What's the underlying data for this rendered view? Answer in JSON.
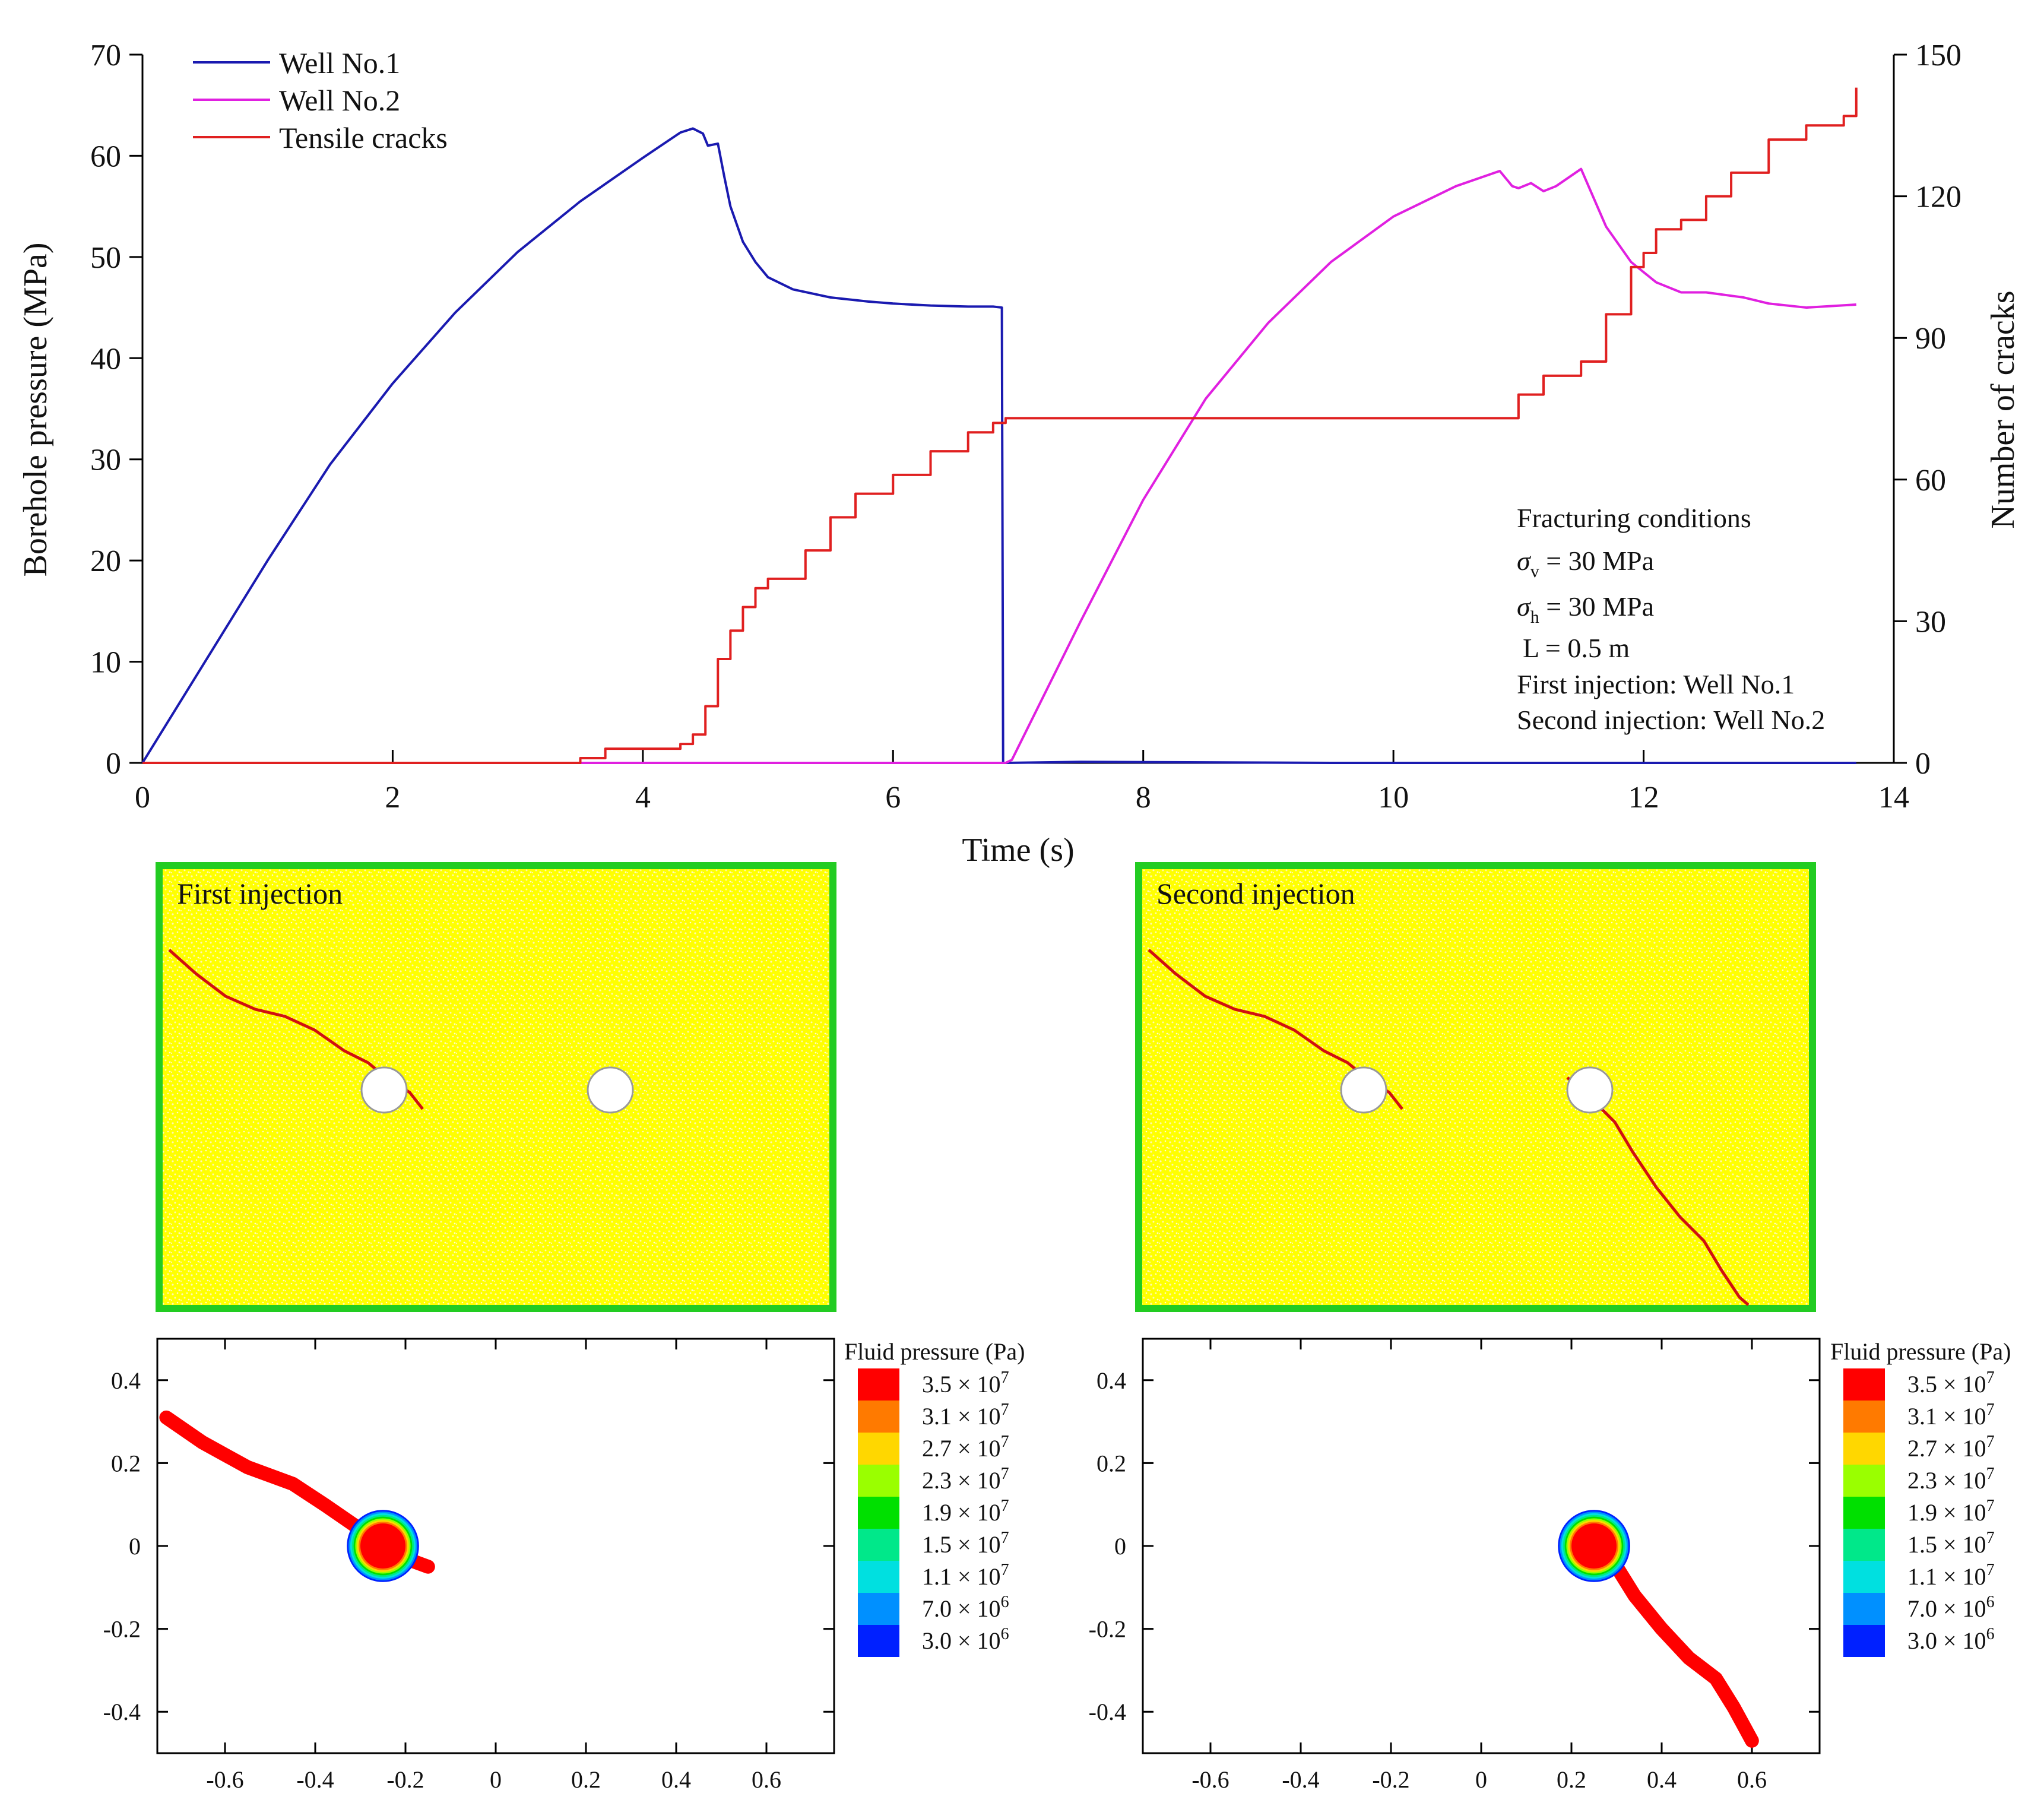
{
  "chart_data": [
    {
      "type": "line",
      "title": "",
      "xlabel": "Time (s)",
      "ylabel": "Borehole pressure (MPa)",
      "y2label": "Number of cracks",
      "xlim": [
        0,
        14
      ],
      "ylim": [
        0,
        70
      ],
      "y2lim": [
        0,
        150
      ],
      "xticks": [
        0,
        2,
        4,
        6,
        8,
        10,
        12,
        14
      ],
      "yticks": [
        0,
        10,
        20,
        30,
        40,
        50,
        60,
        70
      ],
      "y2ticks": [
        0,
        30,
        60,
        90,
        120,
        150
      ],
      "legend_position": "top-left",
      "series": [
        {
          "name": "Well No.1",
          "axis": "left",
          "color": "#1a1ab0",
          "x": [
            0,
            0.5,
            1.0,
            1.5,
            2.0,
            2.5,
            3.0,
            3.5,
            4.0,
            4.3,
            4.4,
            4.48,
            4.52,
            4.6,
            4.65,
            4.7,
            4.8,
            4.9,
            5.0,
            5.2,
            5.5,
            5.8,
            6.0,
            6.3,
            6.6,
            6.8,
            6.87,
            6.88,
            6.9,
            7.5,
            9.5,
            11,
            12,
            13,
            13.7
          ],
          "values": [
            0,
            10,
            20,
            29.5,
            37.5,
            44.5,
            50.5,
            55.5,
            59.8,
            62.3,
            62.7,
            62.2,
            61,
            61.2,
            58,
            55,
            51.5,
            49.5,
            48,
            46.8,
            46,
            45.6,
            45.4,
            45.2,
            45.1,
            45.1,
            45,
            0,
            0,
            0.1,
            0,
            0,
            0,
            0,
            0
          ]
        },
        {
          "name": "Well No.2",
          "axis": "left",
          "color": "#e020e0",
          "x": [
            0,
            6.9,
            6.95,
            7.5,
            8.0,
            8.5,
            9.0,
            9.5,
            10.0,
            10.5,
            10.85,
            10.95,
            11.0,
            11.1,
            11.2,
            11.3,
            11.5,
            11.7,
            11.9,
            12.1,
            12.3,
            12.5,
            12.8,
            13.0,
            13.3,
            13.7
          ],
          "values": [
            0,
            0,
            0.3,
            14,
            26,
            36,
            43.5,
            49.5,
            54,
            57,
            58.5,
            57,
            56.8,
            57.3,
            56.5,
            57,
            58.7,
            53,
            49.5,
            47.5,
            46.5,
            46.5,
            46,
            45.4,
            45,
            45.3
          ]
        },
        {
          "name": "Tensile cracks",
          "axis": "right",
          "color": "#e02020",
          "x": [
            0,
            3.3,
            3.5,
            3.7,
            4.0,
            4.3,
            4.4,
            4.5,
            4.6,
            4.7,
            4.8,
            4.9,
            5.0,
            5.3,
            5.5,
            5.7,
            6.0,
            6.3,
            6.6,
            6.8,
            6.9,
            8.0,
            9.0,
            10.0,
            10.8,
            11.0,
            11.2,
            11.5,
            11.7,
            11.9,
            12.0,
            12.1,
            12.3,
            12.5,
            12.7,
            13.0,
            13.3,
            13.6,
            13.7
          ],
          "values": [
            0,
            0,
            1,
            3,
            3,
            4,
            6,
            12,
            22,
            28,
            33,
            37,
            39,
            45,
            52,
            57,
            61,
            66,
            70,
            72,
            73,
            73,
            73,
            73,
            73,
            78,
            82,
            85,
            95,
            105,
            108,
            113,
            115,
            120,
            125,
            132,
            135,
            137,
            143
          ]
        }
      ],
      "annotations": [
        "Fracturing conditions",
        "σv = 30 MPa",
        "σh = 30 MPa",
        "L = 0.5 m",
        "First injection: Well No.1",
        "Second injection: Well No.2"
      ]
    },
    {
      "type": "heatmap",
      "title": "Fluid pressure (Pa)",
      "xlim": [
        -0.75,
        0.75
      ],
      "ylim": [
        -0.5,
        0.5
      ],
      "xticks": [
        "-0.6",
        "-0.4",
        "-0.2",
        "0",
        "0.2",
        "0.4",
        "0.6"
      ],
      "yticks": [
        "-0.4",
        "-0.2",
        "0",
        "0.2",
        "0.4"
      ],
      "legend": [
        "3.5 × 10^7",
        "3.1 × 10^7",
        "2.7 × 10^7",
        "2.3 × 10^7",
        "1.9 × 10^7",
        "1.5 × 10^7",
        "1.1 × 10^7",
        "7.0 × 10^6",
        "3.0 × 10^6"
      ],
      "colors": [
        "#ff0000",
        "#ff7a00",
        "#ffd700",
        "#9aff00",
        "#00e000",
        "#00e88a",
        "#00e0e0",
        "#0090ff",
        "#0020ff"
      ],
      "core": [
        -0.25,
        0.0
      ],
      "crack_path": [
        [
          -0.73,
          0.31
        ],
        [
          -0.65,
          0.25
        ],
        [
          -0.55,
          0.19
        ],
        [
          -0.45,
          0.15
        ],
        [
          -0.38,
          0.1
        ],
        [
          -0.3,
          0.04
        ],
        [
          -0.25,
          0.0
        ],
        [
          -0.2,
          -0.03
        ],
        [
          -0.15,
          -0.05
        ]
      ]
    },
    {
      "type": "heatmap",
      "title": "Fluid pressure (Pa)",
      "xlim": [
        -0.75,
        0.75
      ],
      "ylim": [
        -0.5,
        0.5
      ],
      "xticks": [
        "-0.6",
        "-0.4",
        "-0.2",
        "0",
        "0.2",
        "0.4",
        "0.6"
      ],
      "yticks": [
        "-0.4",
        "-0.2",
        "0",
        "0.2",
        "0.4"
      ],
      "legend": [
        "3.5 × 10^7",
        "3.1 × 10^7",
        "2.7 × 10^7",
        "2.3 × 10^7",
        "1.9 × 10^7",
        "1.5 × 10^7",
        "1.1 × 10^7",
        "7.0 × 10^6",
        "3.0 × 10^6"
      ],
      "colors": [
        "#ff0000",
        "#ff7a00",
        "#ffd700",
        "#9aff00",
        "#00e000",
        "#00e88a",
        "#00e0e0",
        "#0090ff",
        "#0020ff"
      ],
      "core": [
        0.25,
        0.0
      ],
      "crack_path": [
        [
          0.25,
          0.0
        ],
        [
          0.3,
          -0.05
        ],
        [
          0.34,
          -0.12
        ],
        [
          0.4,
          -0.2
        ],
        [
          0.46,
          -0.27
        ],
        [
          0.52,
          -0.32
        ],
        [
          0.56,
          -0.39
        ],
        [
          0.6,
          -0.47
        ]
      ]
    }
  ],
  "panels": {
    "first_label": "First injection",
    "second_label": "Second injection"
  },
  "legend_labels": [
    "Well No.1",
    "Well No.2",
    "Tensile cracks"
  ],
  "conditions": {
    "title": "Fracturing conditions",
    "sv_unit": " = 30 MPa",
    "sh_unit": " = 30 MPa",
    "length": "L = 0.5 m",
    "first": "First injection: Well No.1",
    "second": "Second injection: Well No.2"
  },
  "colorbar_mantissas": [
    "3.5",
    "3.1",
    "2.7",
    "2.3",
    "1.9",
    "1.5",
    "1.1",
    "7.0",
    "3.0"
  ],
  "colorbar_exponents": [
    "7",
    "7",
    "7",
    "7",
    "7",
    "7",
    "7",
    "6",
    "6"
  ]
}
